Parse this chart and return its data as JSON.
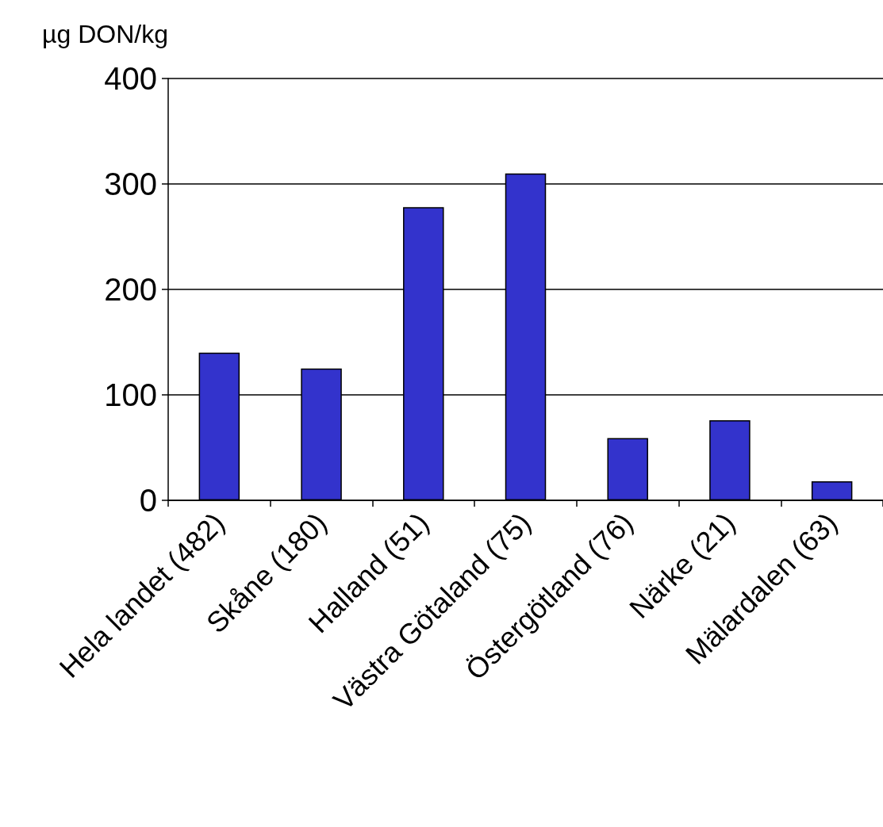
{
  "chart_data": {
    "type": "bar",
    "ylabel": "µg DON/kg",
    "categories": [
      "Hela landet (482)",
      "Skåne (180)",
      "Halland (51)",
      "Västra Götaland (75)",
      "Östergötland (76)",
      "Närke (21)",
      "Mälardalen (63)"
    ],
    "values": [
      140,
      125,
      278,
      310,
      59,
      76,
      18
    ],
    "color": "#3333cc",
    "ylim": [
      0,
      400
    ],
    "yticks": [
      0,
      100,
      200,
      300,
      400
    ],
    "grid": "y"
  }
}
